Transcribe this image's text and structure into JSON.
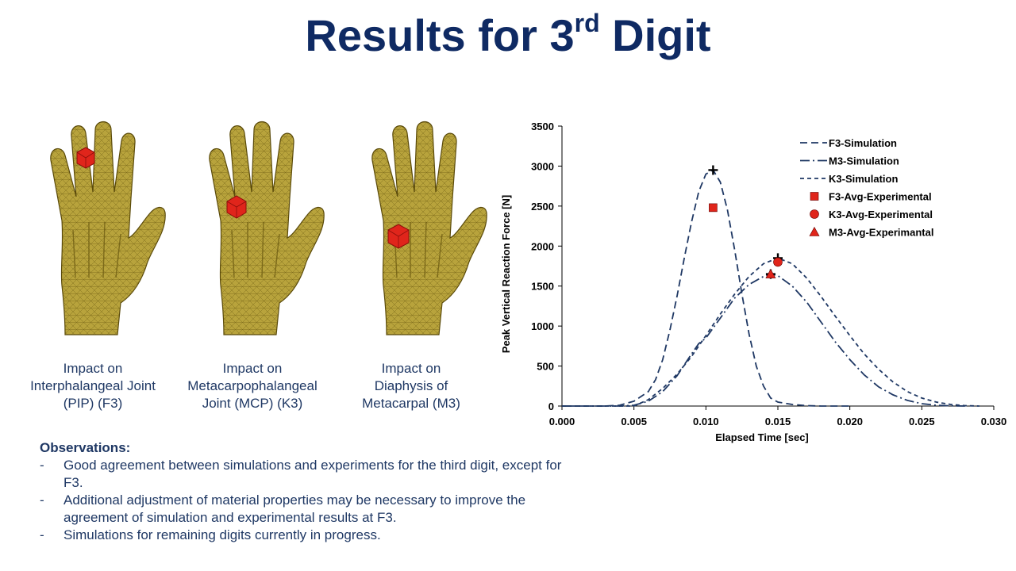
{
  "slide": {
    "title_main": "Results for 3",
    "title_sup": "rd",
    "title_end": " Digit"
  },
  "hands": [
    {
      "caption_lines": [
        "Impact on",
        "Interphalangeal Joint",
        "(PIP) (F3)"
      ],
      "impact_site": "PIP joint, middle finger"
    },
    {
      "caption_lines": [
        "Impact on",
        "Metacarpophalangeal",
        "Joint (MCP) (K3)"
      ],
      "impact_site": "MCP joint, middle finger"
    },
    {
      "caption_lines": [
        "Impact on",
        "Diaphysis of",
        "Metacarpal (M3)"
      ],
      "impact_site": "3rd metacarpal shaft"
    }
  ],
  "observations": {
    "heading": "Observations:",
    "bullet": "-",
    "items": [
      "Good agreement between simulations and experiments for the third digit, except for F3.",
      "Additional adjustment of material properties may be necessary to improve the agreement of simulation and experimental results at F3.",
      "Simulations for remaining digits currently in progress."
    ]
  },
  "colors": {
    "title": "#0f2a63",
    "text": "#1f3864",
    "hand_fill": "#b8a33c",
    "hand_mesh": "#6b5a10",
    "impactor": "#e0251b",
    "series_line": "#1f3864",
    "marker": "#e0251b"
  },
  "chart_data": {
    "type": "line",
    "title": "",
    "xlabel": "Elapsed Time [sec]",
    "ylabel": "Peak Vertical Reaction Force [N]",
    "xlim": [
      0,
      0.03
    ],
    "ylim": [
      0,
      3500
    ],
    "xticks": [
      "0.000",
      "0.005",
      "0.010",
      "0.015",
      "0.020",
      "0.025",
      "0.030"
    ],
    "yticks": [
      "0",
      "500",
      "1000",
      "1500",
      "2000",
      "2500",
      "3000",
      "3500"
    ],
    "grid": false,
    "legend_position": "top-right",
    "series": [
      {
        "name": "F3-Simulation",
        "style": "long-dash",
        "x": [
          0.0,
          0.003,
          0.004,
          0.005,
          0.006,
          0.0065,
          0.007,
          0.0075,
          0.008,
          0.0085,
          0.009,
          0.0095,
          0.01,
          0.0105,
          0.011,
          0.0115,
          0.012,
          0.0125,
          0.013,
          0.0135,
          0.014,
          0.0145,
          0.015,
          0.016,
          0.017,
          0.018,
          0.02
        ],
        "y": [
          0,
          0,
          10,
          60,
          180,
          330,
          580,
          950,
          1380,
          1850,
          2300,
          2680,
          2900,
          2950,
          2800,
          2450,
          1950,
          1400,
          900,
          500,
          250,
          100,
          50,
          20,
          5,
          0,
          0
        ]
      },
      {
        "name": "M3-Simulation",
        "style": "dash-dot",
        "x": [
          0.0,
          0.004,
          0.005,
          0.006,
          0.007,
          0.008,
          0.009,
          0.0095,
          0.01,
          0.011,
          0.012,
          0.013,
          0.014,
          0.0145,
          0.015,
          0.016,
          0.017,
          0.018,
          0.019,
          0.02,
          0.021,
          0.022,
          0.023,
          0.024,
          0.025,
          0.026,
          0.027,
          0.028
        ],
        "y": [
          0,
          0,
          10,
          60,
          180,
          380,
          650,
          780,
          850,
          1100,
          1350,
          1520,
          1620,
          1650,
          1630,
          1500,
          1300,
          1050,
          800,
          580,
          390,
          240,
          140,
          70,
          30,
          10,
          3,
          0
        ]
      },
      {
        "name": "K3-Simulation",
        "style": "short-dash",
        "x": [
          0.0,
          0.005,
          0.006,
          0.007,
          0.008,
          0.009,
          0.01,
          0.011,
          0.012,
          0.013,
          0.014,
          0.015,
          0.016,
          0.017,
          0.018,
          0.019,
          0.02,
          0.021,
          0.022,
          0.023,
          0.024,
          0.025,
          0.026,
          0.027,
          0.028,
          0.029
        ],
        "y": [
          0,
          0,
          80,
          220,
          400,
          620,
          880,
          1150,
          1400,
          1620,
          1780,
          1850,
          1780,
          1600,
          1370,
          1120,
          880,
          650,
          460,
          300,
          180,
          100,
          50,
          20,
          5,
          0
        ]
      }
    ],
    "experimental": [
      {
        "name": "F3-Avg-Experimental",
        "marker": "square",
        "x": 0.0105,
        "y": 2480
      },
      {
        "name": "K3-Avg-Experimental",
        "marker": "circle",
        "x": 0.015,
        "y": 1800
      },
      {
        "name": "M3-Avg-Experimantal",
        "marker": "triangle",
        "x": 0.0145,
        "y": 1650
      }
    ],
    "peak_markers": [
      {
        "x": 0.0105,
        "y": 2950
      },
      {
        "x": 0.015,
        "y": 1850
      },
      {
        "x": 0.0145,
        "y": 1650
      }
    ]
  }
}
